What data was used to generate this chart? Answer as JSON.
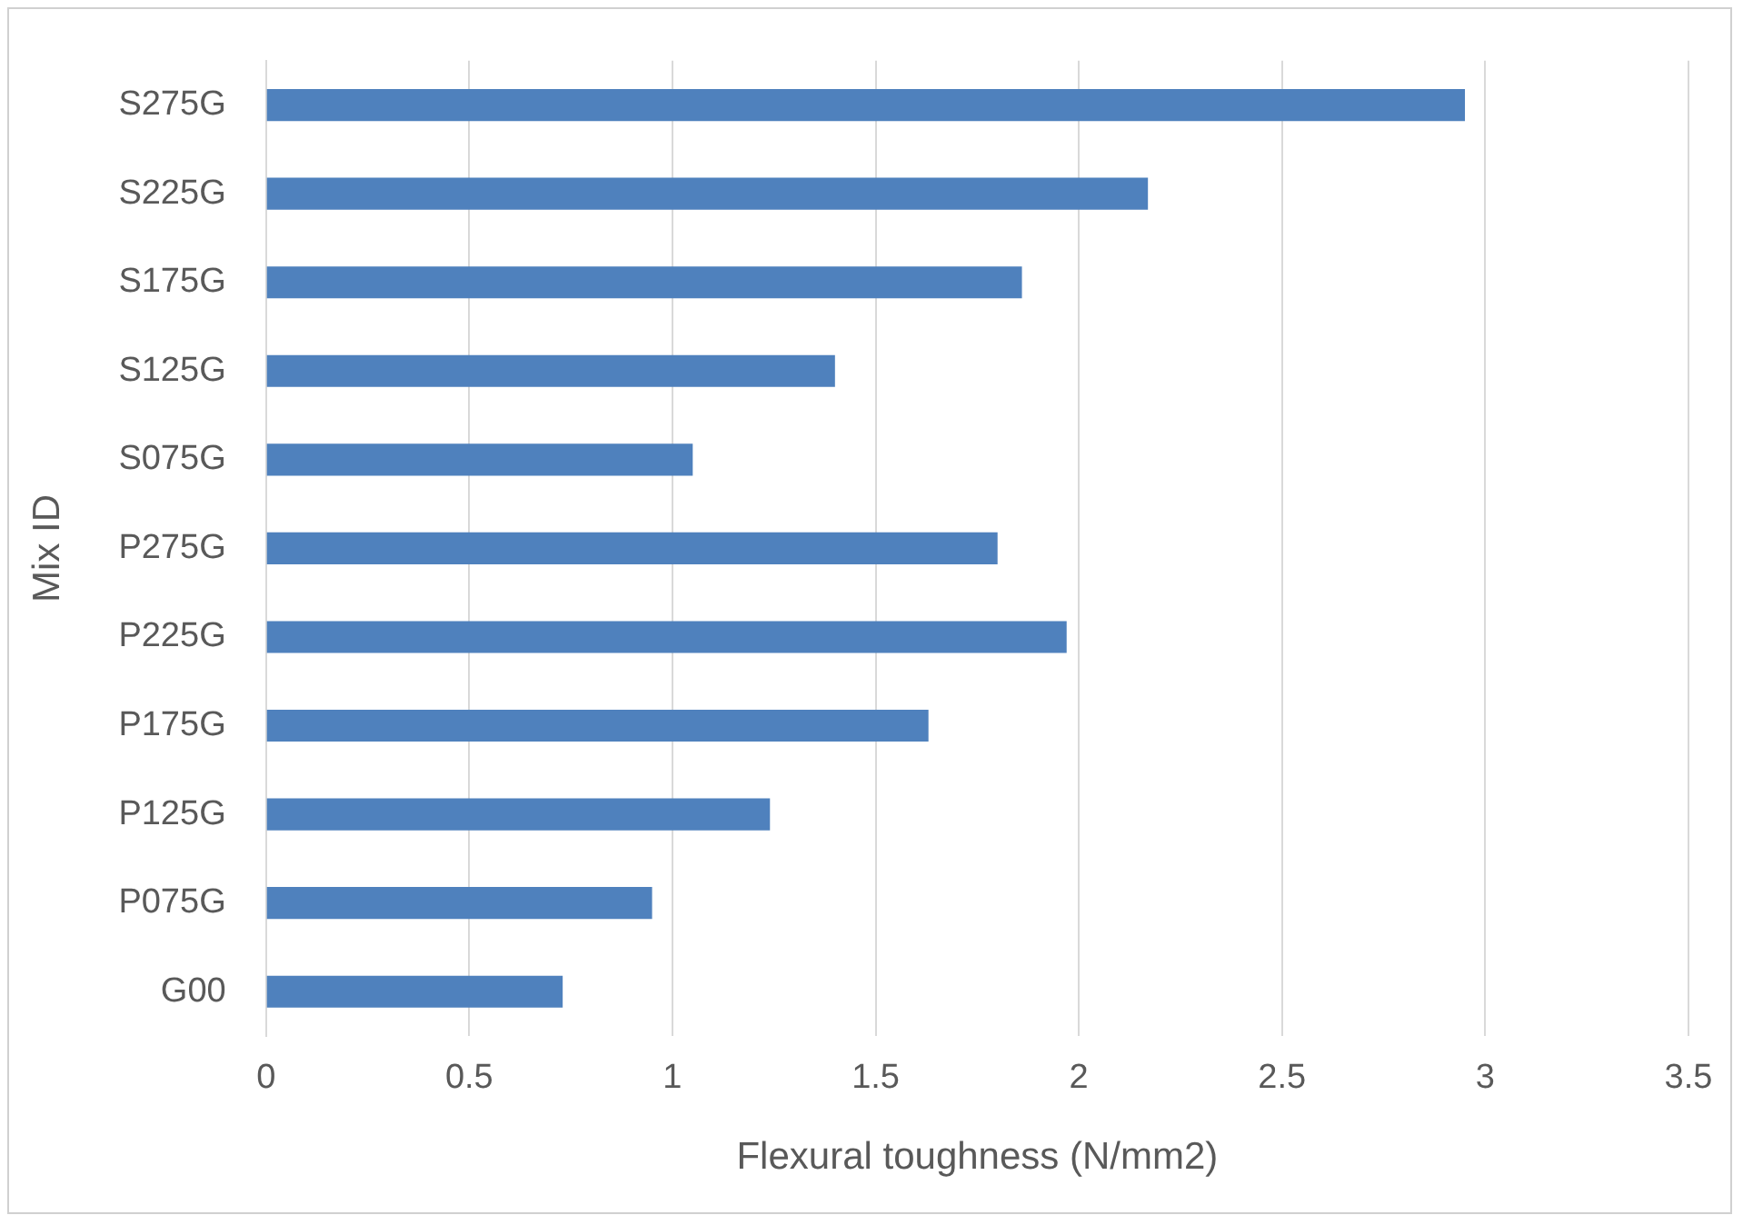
{
  "chart_data": {
    "type": "bar",
    "orientation": "horizontal",
    "xlabel": "Flexural toughness (N/mm2)",
    "ylabel": "Mix ID",
    "categories": [
      "S275G",
      "S225G",
      "S175G",
      "S125G",
      "S075G",
      "P275G",
      "P225G",
      "P175G",
      "P125G",
      "P075G",
      "G00"
    ],
    "values": [
      2.95,
      2.17,
      1.86,
      1.4,
      1.05,
      1.8,
      1.97,
      1.63,
      1.24,
      0.95,
      0.73
    ],
    "color": "#4f81bd",
    "xlim": [
      0,
      3.5
    ],
    "xticks": [
      0,
      0.5,
      1,
      1.5,
      2,
      2.5,
      3,
      3.5
    ],
    "grid": "x",
    "legend": false
  }
}
